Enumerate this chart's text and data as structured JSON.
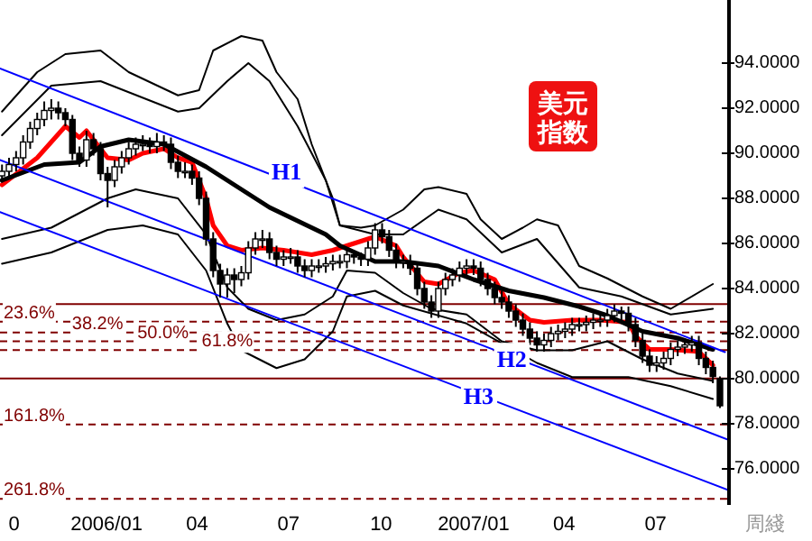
{
  "chart_data": {
    "type": "candlestick",
    "xlabel": "周綫",
    "annotations": [
      "美元指数",
      {
        "text": "H1",
        "x": "2006-06-29",
        "y": 89.06
      },
      {
        "text": "H2",
        "x": "2007-02-08",
        "y": 80.75
      },
      {
        "text": "H3",
        "x": "2007-01-06",
        "y": 79.1
      },
      {
        "text": "23.6%",
        "x": "2005-09-17",
        "y": 82.53
      },
      {
        "text": "38.2%",
        "x": "2005-11-24",
        "y": 82.05
      },
      {
        "text": "50.0%",
        "x": "2006-01-28",
        "y": 81.66
      },
      {
        "text": "61.8%",
        "x": "2006-04-02",
        "y": 81.27
      },
      {
        "text": "161.8%",
        "x": "2005-09-17",
        "y": 77.97
      },
      {
        "text": "261.8%",
        "x": "2005-09-17",
        "y": 74.67
      }
    ],
    "x": [
      "2005-09-19",
      "2005-09-26",
      "2005-10-03",
      "2005-10-10",
      "2005-10-17",
      "2005-10-24",
      "2005-10-31",
      "2005-11-07",
      "2005-11-14",
      "2005-11-21",
      "2005-11-28",
      "2005-12-05",
      "2005-12-12",
      "2005-12-19",
      "2005-12-26",
      "2006-01-02",
      "2006-01-09",
      "2006-01-16",
      "2006-01-23",
      "2006-01-30",
      "2006-02-06",
      "2006-02-13",
      "2006-02-20",
      "2006-02-27",
      "2006-03-06",
      "2006-03-13",
      "2006-03-20",
      "2006-03-27",
      "2006-04-03",
      "2006-04-10",
      "2006-04-17",
      "2006-04-24",
      "2006-05-01",
      "2006-05-08",
      "2006-05-15",
      "2006-05-22",
      "2006-05-29",
      "2006-06-05",
      "2006-06-12",
      "2006-06-19",
      "2006-06-26",
      "2006-07-03",
      "2006-07-10",
      "2006-07-17",
      "2006-07-24",
      "2006-07-31",
      "2006-08-07",
      "2006-08-14",
      "2006-08-21",
      "2006-08-28",
      "2006-09-04",
      "2006-09-11",
      "2006-09-18",
      "2006-09-25",
      "2006-10-02",
      "2006-10-09",
      "2006-10-16",
      "2006-10-23",
      "2006-10-30",
      "2006-11-06",
      "2006-11-13",
      "2006-11-20",
      "2006-11-27",
      "2006-12-04",
      "2006-12-11",
      "2006-12-18",
      "2006-12-25",
      "2007-01-01",
      "2007-01-08",
      "2007-01-15",
      "2007-01-22",
      "2007-01-29",
      "2007-02-05",
      "2007-02-12",
      "2007-02-19",
      "2007-02-26",
      "2007-03-05",
      "2007-03-12",
      "2007-03-19",
      "2007-03-26",
      "2007-04-02",
      "2007-04-09",
      "2007-04-16",
      "2007-04-23",
      "2007-04-30",
      "2007-05-07",
      "2007-05-14",
      "2007-05-21",
      "2007-05-28",
      "2007-06-04",
      "2007-06-11",
      "2007-06-18",
      "2007-06-25",
      "2007-07-02",
      "2007-07-09",
      "2007-07-16",
      "2007-07-23",
      "2007-07-30",
      "2007-08-06",
      "2007-08-13",
      "2007-08-20",
      "2007-08-27",
      "2007-09-03"
    ],
    "ohlc": [
      [
        89.0,
        89.5,
        88.7,
        89.2
      ],
      [
        89.2,
        89.8,
        88.9,
        89.5
      ],
      [
        89.5,
        90.1,
        89.2,
        89.8
      ],
      [
        89.8,
        90.8,
        89.5,
        90.5
      ],
      [
        90.5,
        91.4,
        90.2,
        91.1
      ],
      [
        91.1,
        91.8,
        90.8,
        91.5
      ],
      [
        91.5,
        92.3,
        91.2,
        91.9
      ],
      [
        91.9,
        92.4,
        91.5,
        92.0
      ],
      [
        92.0,
        92.3,
        91.5,
        91.8
      ],
      [
        91.8,
        92.0,
        91.2,
        91.5
      ],
      [
        91.5,
        91.7,
        89.7,
        90.0
      ],
      [
        90.0,
        90.3,
        89.4,
        89.7
      ],
      [
        89.7,
        91.0,
        89.4,
        90.6
      ],
      [
        90.6,
        90.9,
        89.9,
        90.2
      ],
      [
        90.2,
        90.5,
        88.8,
        89.1
      ],
      [
        89.1,
        89.4,
        87.6,
        88.8
      ],
      [
        88.8,
        89.7,
        88.5,
        89.4
      ],
      [
        89.4,
        90.1,
        89.1,
        89.8
      ],
      [
        89.8,
        90.5,
        89.5,
        90.2
      ],
      [
        90.2,
        90.7,
        89.9,
        90.4
      ],
      [
        90.4,
        90.8,
        90.1,
        90.4
      ],
      [
        90.4,
        90.7,
        90.0,
        90.3
      ],
      [
        90.3,
        90.9,
        90.0,
        90.5
      ],
      [
        90.5,
        90.8,
        90.1,
        90.4
      ],
      [
        90.4,
        90.7,
        89.3,
        89.6
      ],
      [
        89.6,
        89.9,
        88.9,
        89.2
      ],
      [
        89.2,
        89.6,
        88.9,
        89.2
      ],
      [
        89.2,
        89.5,
        88.6,
        88.9
      ],
      [
        88.9,
        89.2,
        87.7,
        88.0
      ],
      [
        88.0,
        88.3,
        85.9,
        86.2
      ],
      [
        86.2,
        86.5,
        84.5,
        84.8
      ],
      [
        84.8,
        85.1,
        83.6,
        84.2
      ],
      [
        84.2,
        84.9,
        83.6,
        84.6
      ],
      [
        84.6,
        84.9,
        83.8,
        84.4
      ],
      [
        84.4,
        85.0,
        84.1,
        84.7
      ],
      [
        84.7,
        86.1,
        84.4,
        85.8
      ],
      [
        85.8,
        86.5,
        85.5,
        86.2
      ],
      [
        86.2,
        86.6,
        85.8,
        86.2
      ],
      [
        86.2,
        86.5,
        85.3,
        85.6
      ],
      [
        85.6,
        85.9,
        85.0,
        85.3
      ],
      [
        85.3,
        85.7,
        85.0,
        85.4
      ],
      [
        85.4,
        85.8,
        85.1,
        85.4
      ],
      [
        85.4,
        85.7,
        84.7,
        85.0
      ],
      [
        85.0,
        85.3,
        84.5,
        84.8
      ],
      [
        84.8,
        85.3,
        84.5,
        85.0
      ],
      [
        85.0,
        85.3,
        84.7,
        85.0
      ],
      [
        85.0,
        85.4,
        84.7,
        85.1
      ],
      [
        85.1,
        85.5,
        84.8,
        85.2
      ],
      [
        85.2,
        85.5,
        84.9,
        85.2
      ],
      [
        85.2,
        85.8,
        84.9,
        85.5
      ],
      [
        85.5,
        85.7,
        85.1,
        85.4
      ],
      [
        85.4,
        85.6,
        85.0,
        85.3
      ],
      [
        85.3,
        86.1,
        85.0,
        85.8
      ],
      [
        85.8,
        86.9,
        85.5,
        86.6
      ],
      [
        86.6,
        86.9,
        86.0,
        86.3
      ],
      [
        86.3,
        86.6,
        85.4,
        85.7
      ],
      [
        85.7,
        86.0,
        84.9,
        85.2
      ],
      [
        85.2,
        85.5,
        84.9,
        85.2
      ],
      [
        85.2,
        85.5,
        84.6,
        84.9
      ],
      [
        84.9,
        85.2,
        83.7,
        84.0
      ],
      [
        84.0,
        84.3,
        83.1,
        83.4
      ],
      [
        83.4,
        83.7,
        82.7,
        83.0
      ],
      [
        83.0,
        84.3,
        82.7,
        84.0
      ],
      [
        84.0,
        84.7,
        83.7,
        84.4
      ],
      [
        84.4,
        84.9,
        84.1,
        84.6
      ],
      [
        84.6,
        85.2,
        84.3,
        84.9
      ],
      [
        84.9,
        85.3,
        84.6,
        85.0
      ],
      [
        85.0,
        85.3,
        84.6,
        84.9
      ],
      [
        84.9,
        85.2,
        84.1,
        84.4
      ],
      [
        84.4,
        84.7,
        83.7,
        84.0
      ],
      [
        84.0,
        84.3,
        83.3,
        83.6
      ],
      [
        83.6,
        83.9,
        83.1,
        83.4
      ],
      [
        83.4,
        83.7,
        82.7,
        83.0
      ],
      [
        83.0,
        83.3,
        82.3,
        82.6
      ],
      [
        82.6,
        82.9,
        81.9,
        82.2
      ],
      [
        82.2,
        82.5,
        81.5,
        81.8
      ],
      [
        81.8,
        82.1,
        81.2,
        81.5
      ],
      [
        81.5,
        82.0,
        81.2,
        81.7
      ],
      [
        81.7,
        82.3,
        81.4,
        82.0
      ],
      [
        82.0,
        82.4,
        81.7,
        82.1
      ],
      [
        82.1,
        82.5,
        81.8,
        82.2
      ],
      [
        82.2,
        82.7,
        81.9,
        82.4
      ],
      [
        82.4,
        82.7,
        82.1,
        82.4
      ],
      [
        82.4,
        82.8,
        82.1,
        82.5
      ],
      [
        82.5,
        82.9,
        82.2,
        82.6
      ],
      [
        82.6,
        82.9,
        82.3,
        82.6
      ],
      [
        82.6,
        83.1,
        82.3,
        82.8
      ],
      [
        82.8,
        83.3,
        82.5,
        83.0
      ],
      [
        83.0,
        83.2,
        82.6,
        82.9
      ],
      [
        82.9,
        83.2,
        82.1,
        82.4
      ],
      [
        82.4,
        82.7,
        81.4,
        81.7
      ],
      [
        81.7,
        82.0,
        80.7,
        81.0
      ],
      [
        81.0,
        81.3,
        80.3,
        80.6
      ],
      [
        80.6,
        81.0,
        80.3,
        80.7
      ],
      [
        80.7,
        81.2,
        80.4,
        80.9
      ],
      [
        80.9,
        81.6,
        80.6,
        81.3
      ],
      [
        81.3,
        81.7,
        81.0,
        81.4
      ],
      [
        81.4,
        81.8,
        81.1,
        81.5
      ],
      [
        81.5,
        81.9,
        81.2,
        81.6
      ],
      [
        81.6,
        81.9,
        80.6,
        80.9
      ],
      [
        80.9,
        81.2,
        80.2,
        80.5
      ],
      [
        80.5,
        80.8,
        79.8,
        80.1
      ],
      [
        80.0,
        80.1,
        78.7,
        78.8
      ]
    ],
    "series": [
      {
        "type": "line",
        "color": "#ff0000",
        "x": [
          "2005-09-19",
          "2005-10-24",
          "2005-11-21",
          "2005-12-05",
          "2005-12-12",
          "2006-01-02",
          "2006-01-23",
          "2006-02-06",
          "2006-02-27",
          "2006-03-13",
          "2006-03-27",
          "2006-04-10",
          "2006-04-17",
          "2006-05-01",
          "2006-05-15",
          "2006-06-05",
          "2006-06-26",
          "2006-07-24",
          "2006-08-14",
          "2006-09-11",
          "2006-09-25",
          "2006-10-16",
          "2006-10-23",
          "2006-11-13",
          "2006-11-27",
          "2006-12-18",
          "2007-01-01",
          "2007-01-22",
          "2007-02-05",
          "2007-02-26",
          "2007-03-12",
          "2007-04-09",
          "2007-05-07",
          "2007-06-04",
          "2007-06-11",
          "2007-06-25",
          "2007-07-16",
          "2007-08-13",
          "2007-08-27"
        ],
        "values": [
          88.6,
          89.8,
          91.2,
          90.7,
          91.0,
          89.8,
          89.7,
          90.0,
          90.2,
          89.8,
          89.6,
          88.0,
          86.8,
          85.9,
          85.7,
          85.8,
          85.7,
          85.5,
          85.7,
          86.1,
          86.3,
          85.9,
          85.4,
          84.3,
          84.2,
          84.7,
          84.8,
          84.4,
          83.3,
          82.6,
          82.5,
          82.6,
          82.6,
          82.5,
          81.9,
          81.3,
          81.3,
          81.2,
          80.6
        ]
      },
      {
        "type": "line",
        "color": "#000000",
        "x": [
          "2005-09-19",
          "2005-10-31",
          "2005-12-05",
          "2005-12-26",
          "2006-01-23",
          "2006-02-27",
          "2006-03-20",
          "2006-04-10",
          "2006-05-08",
          "2006-06-12",
          "2006-07-10",
          "2006-08-07",
          "2006-08-21",
          "2006-09-25",
          "2006-10-23",
          "2006-11-27",
          "2007-01-01",
          "2007-02-05",
          "2007-03-12",
          "2007-04-16",
          "2007-05-14",
          "2007-06-18",
          "2007-07-23",
          "2007-08-27"
        ],
        "values": [
          88.8,
          89.5,
          89.6,
          90.3,
          90.6,
          90.4,
          89.9,
          89.4,
          88.6,
          87.6,
          87.0,
          86.4,
          85.9,
          85.2,
          85.2,
          85.0,
          84.4,
          83.9,
          83.6,
          83.2,
          82.8,
          82.1,
          81.8,
          81.3
        ]
      },
      {
        "type": "line",
        "color": "#000000",
        "x": [
          "2005-09-19",
          "2005-10-24",
          "2005-11-21",
          "2005-12-26",
          "2006-01-23",
          "2006-03-13",
          "2006-04-03",
          "2006-04-17",
          "2006-05-15",
          "2006-06-05",
          "2006-06-19",
          "2006-07-10",
          "2006-07-24",
          "2006-08-14",
          "2006-08-21",
          "2006-09-11",
          "2006-09-25",
          "2006-10-23",
          "2006-11-13",
          "2006-11-27",
          "2006-12-25",
          "2007-01-08",
          "2007-01-29",
          "2007-02-19",
          "2007-03-05",
          "2007-03-26",
          "2007-04-16",
          "2007-05-14",
          "2007-06-18",
          "2007-07-16",
          "2007-08-27"
        ],
        "values": [
          91.85,
          93.6,
          94.4,
          94.56,
          93.6,
          92.57,
          92.8,
          94.56,
          95.2,
          95.0,
          93.6,
          92.4,
          90.4,
          88.0,
          86.8,
          86.7,
          86.8,
          87.5,
          88.4,
          88.5,
          88.2,
          87.07,
          86.2,
          86.7,
          87.07,
          86.8,
          85.0,
          84.45,
          83.65,
          83.1,
          84.2
        ]
      },
      {
        "type": "line",
        "color": "#000000",
        "x": [
          "2005-09-19",
          "2005-11-07",
          "2005-12-26",
          "2006-03-13",
          "2006-04-03",
          "2006-05-01",
          "2006-05-22",
          "2006-06-12",
          "2006-07-10",
          "2006-08-07",
          "2006-08-21",
          "2006-09-25",
          "2006-10-23",
          "2006-11-27",
          "2006-12-25",
          "2007-01-29",
          "2007-03-05",
          "2007-04-16",
          "2007-05-28",
          "2007-07-16",
          "2007-08-27"
        ],
        "values": [
          90.8,
          93.0,
          93.2,
          91.85,
          92.0,
          93.2,
          94.0,
          93.2,
          91.2,
          88.8,
          86.8,
          86.4,
          86.4,
          87.5,
          87.07,
          85.6,
          86.2,
          84.05,
          83.65,
          82.85,
          83.1
        ]
      },
      {
        "type": "line",
        "color": "#000000",
        "x": [
          "2005-09-19",
          "2005-11-07",
          "2006-01-02",
          "2006-01-30",
          "2006-03-13",
          "2006-04-10",
          "2006-05-01",
          "2006-05-22",
          "2006-06-19",
          "2006-07-17",
          "2006-08-14",
          "2006-08-28",
          "2006-09-25",
          "2006-10-23",
          "2006-11-20",
          "2006-12-25",
          "2007-01-29",
          "2007-03-05",
          "2007-04-09",
          "2007-05-14",
          "2007-06-18",
          "2007-07-23",
          "2007-08-27"
        ],
        "values": [
          86.2,
          86.7,
          88.0,
          88.4,
          88.0,
          86.4,
          84.05,
          83.1,
          82.6,
          82.85,
          83.65,
          84.8,
          84.7,
          83.8,
          83.1,
          82.85,
          81.66,
          81.26,
          81.26,
          81.66,
          80.86,
          80.23,
          79.9
        ]
      },
      {
        "type": "line",
        "color": "#000000",
        "x": [
          "2005-09-19",
          "2005-11-07",
          "2006-01-02",
          "2006-02-06",
          "2006-03-13",
          "2006-04-10",
          "2006-05-01",
          "2006-05-15",
          "2006-06-19",
          "2006-07-17",
          "2006-08-14",
          "2006-08-28",
          "2006-09-25",
          "2006-10-23",
          "2006-12-25",
          "2007-03-05",
          "2007-04-09",
          "2007-06-04",
          "2007-07-16",
          "2007-08-27"
        ],
        "values": [
          85.1,
          85.6,
          86.6,
          86.8,
          86.4,
          84.8,
          82.45,
          81.26,
          80.47,
          80.86,
          82.1,
          83.65,
          83.9,
          83.25,
          82.45,
          80.7,
          80.07,
          80.07,
          79.67,
          79.1
        ]
      },
      {
        "type": "line",
        "color": "#0000ff",
        "x": [
          "2005-09-17",
          "2007-09-08"
        ],
        "values": [
          93.76,
          81.18
        ]
      },
      {
        "type": "line",
        "color": "#0000ff",
        "x": [
          "2005-09-17",
          "2007-09-12"
        ],
        "values": [
          89.7,
          77.28
        ]
      },
      {
        "type": "line",
        "color": "#0000ff",
        "x": [
          "2005-09-17",
          "2007-09-12"
        ],
        "values": [
          87.39,
          75.05
        ]
      }
    ],
    "xlim": [
      "2005-09-17",
      "2007-09-12"
    ],
    "ylim": [
      74.4,
      96.8
    ],
    "xticks": [
      {
        "value": "2005-10-01",
        "label": "0"
      },
      {
        "value": "2006-01-01",
        "label": "2006/01"
      },
      {
        "value": "2006-04-01",
        "label": "04"
      },
      {
        "value": "2006-07-01",
        "label": "07"
      },
      {
        "value": "2006-10-01",
        "label": "10"
      },
      {
        "value": "2007-01-01",
        "label": "2007/01"
      },
      {
        "value": "2007-04-01",
        "label": "04"
      },
      {
        "value": "2007-07-01",
        "label": "07"
      }
    ],
    "yticks": [
      {
        "value": 76,
        "label": "76.0000"
      },
      {
        "value": 78,
        "label": "78.0000"
      },
      {
        "value": 80,
        "label": "80.0000"
      },
      {
        "value": 82,
        "label": "82.0000"
      },
      {
        "value": 84,
        "label": "84.0000"
      },
      {
        "value": 86,
        "label": "86.0000"
      },
      {
        "value": 88,
        "label": "88.0000"
      },
      {
        "value": 90,
        "label": "90.0000"
      },
      {
        "value": 92,
        "label": "92.0000"
      },
      {
        "value": 94,
        "label": "94.0000"
      }
    ],
    "ref_lines": [
      {
        "axis": "y",
        "value": 83.31,
        "color": "#800000",
        "line_style": "solid"
      },
      {
        "axis": "y",
        "value": 82.53,
        "color": "#800000",
        "line_style": "dashed"
      },
      {
        "axis": "y",
        "value": 82.05,
        "color": "#800000",
        "line_style": "dashed"
      },
      {
        "axis": "y",
        "value": 81.66,
        "color": "#800000",
        "line_style": "dashed"
      },
      {
        "axis": "y",
        "value": 81.27,
        "color": "#800000",
        "line_style": "dashed"
      },
      {
        "axis": "y",
        "value": 80.01,
        "color": "#800000",
        "line_style": "solid"
      },
      {
        "axis": "y",
        "value": 77.97,
        "color": "#800000",
        "line_style": "dashed"
      },
      {
        "axis": "y",
        "value": 74.67,
        "color": "#800000",
        "line_style": "dashed"
      }
    ],
    "grid": false
  }
}
